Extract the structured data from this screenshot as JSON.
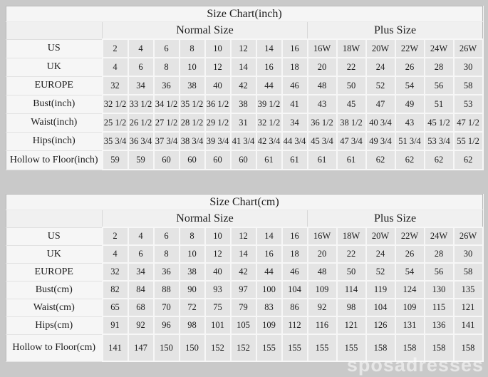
{
  "page": {
    "background": "#c9c9c9",
    "table_background": "#f6f6f6",
    "cell_background": "#e4e4e4",
    "watermark": "sposadresses"
  },
  "chart_data": [
    {
      "type": "table",
      "title": "Size Chart(inch)",
      "group_headers": [
        "Normal Size",
        "Plus Size"
      ],
      "rows": [
        {
          "label": "US",
          "values": [
            "2",
            "4",
            "6",
            "8",
            "10",
            "12",
            "14",
            "16",
            "16W",
            "18W",
            "20W",
            "22W",
            "24W",
            "26W"
          ]
        },
        {
          "label": "UK",
          "values": [
            "4",
            "6",
            "8",
            "10",
            "12",
            "14",
            "16",
            "18",
            "20",
            "22",
            "24",
            "26",
            "28",
            "30"
          ]
        },
        {
          "label": "EUROPE",
          "values": [
            "32",
            "34",
            "36",
            "38",
            "40",
            "42",
            "44",
            "46",
            "48",
            "50",
            "52",
            "54",
            "56",
            "58"
          ]
        },
        {
          "label": "Bust(inch)",
          "values": [
            "32 1/2",
            "33 1/2",
            "34 1/2",
            "35 1/2",
            "36 1/2",
            "38",
            "39 1/2",
            "41",
            "43",
            "45",
            "47",
            "49",
            "51",
            "53"
          ]
        },
        {
          "label": "Waist(inch)",
          "values": [
            "25 1/2",
            "26 1/2",
            "27 1/2",
            "28 1/2",
            "29 1/2",
            "31",
            "32 1/2",
            "34",
            "36 1/2",
            "38 1/2",
            "40 3/4",
            "43",
            "45 1/2",
            "47 1/2"
          ]
        },
        {
          "label": "Hips(inch)",
          "values": [
            "35 3/4",
            "36 3/4",
            "37 3/4",
            "38 3/4",
            "39 3/4",
            "41 3/4",
            "42 3/4",
            "44 3/4",
            "45 3/4",
            "47 3/4",
            "49 3/4",
            "51 3/4",
            "53 3/4",
            "55 1/2"
          ]
        },
        {
          "label": "Hollow to Floor(inch)",
          "values": [
            "59",
            "59",
            "60",
            "60",
            "60",
            "60",
            "61",
            "61",
            "61",
            "61",
            "62",
            "62",
            "62",
            "62"
          ]
        }
      ]
    },
    {
      "type": "table",
      "title": "Size Chart(cm)",
      "group_headers": [
        "Normal Size",
        "Plus Size"
      ],
      "rows": [
        {
          "label": "US",
          "values": [
            "2",
            "4",
            "6",
            "8",
            "10",
            "12",
            "14",
            "16",
            "16W",
            "18W",
            "20W",
            "22W",
            "24W",
            "26W"
          ]
        },
        {
          "label": "UK",
          "values": [
            "4",
            "6",
            "8",
            "10",
            "12",
            "14",
            "16",
            "18",
            "20",
            "22",
            "24",
            "26",
            "28",
            "30"
          ]
        },
        {
          "label": "EUROPE",
          "values": [
            "32",
            "34",
            "36",
            "38",
            "40",
            "42",
            "44",
            "46",
            "48",
            "50",
            "52",
            "54",
            "56",
            "58"
          ]
        },
        {
          "label": "Bust(cm)",
          "values": [
            "82",
            "84",
            "88",
            "90",
            "93",
            "97",
            "100",
            "104",
            "109",
            "114",
            "119",
            "124",
            "130",
            "135"
          ]
        },
        {
          "label": "Waist(cm)",
          "values": [
            "65",
            "68",
            "70",
            "72",
            "75",
            "79",
            "83",
            "86",
            "92",
            "98",
            "104",
            "109",
            "115",
            "121"
          ]
        },
        {
          "label": "Hips(cm)",
          "values": [
            "91",
            "92",
            "96",
            "98",
            "101",
            "105",
            "109",
            "112",
            "116",
            "121",
            "126",
            "131",
            "136",
            "141"
          ]
        },
        {
          "label": "Hollow to Floor(cm)",
          "values": [
            "141",
            "147",
            "150",
            "150",
            "152",
            "152",
            "155",
            "155",
            "155",
            "155",
            "158",
            "158",
            "158",
            "158"
          ]
        }
      ]
    }
  ]
}
